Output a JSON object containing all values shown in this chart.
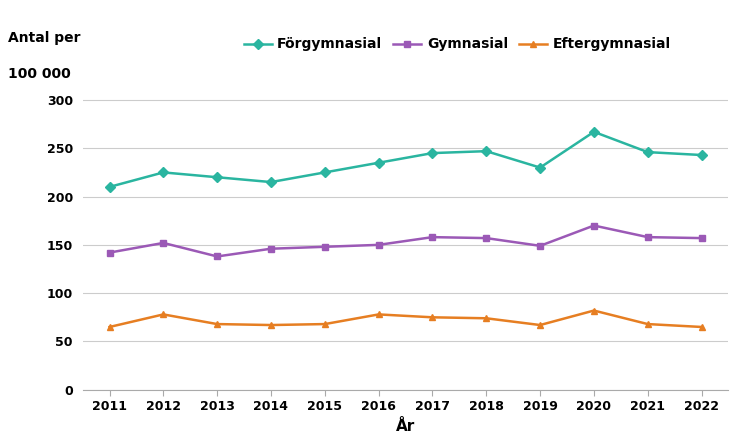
{
  "years": [
    2011,
    2012,
    2013,
    2014,
    2015,
    2016,
    2017,
    2018,
    2019,
    2020,
    2021,
    2022
  ],
  "forgymnasial": [
    210,
    225,
    220,
    215,
    225,
    235,
    245,
    247,
    230,
    267,
    246,
    243
  ],
  "gymnasial": [
    142,
    152,
    138,
    146,
    148,
    150,
    158,
    157,
    149,
    170,
    158,
    157
  ],
  "eftergymnasial": [
    65,
    78,
    68,
    67,
    68,
    78,
    75,
    74,
    67,
    82,
    68,
    65
  ],
  "forgymnasial_color": "#2ab5a0",
  "gymnasial_color": "#9b59b6",
  "eftergymnasial_color": "#e67e22",
  "xlabel": "År",
  "ylabel_line1": "Antal per",
  "ylabel_line2": "100 000",
  "ylim": [
    0,
    320
  ],
  "yticks": [
    0,
    50,
    100,
    150,
    200,
    250,
    300
  ],
  "legend_labels": [
    "Förgymnasial",
    "Gymnasial",
    "Eftergymnasial"
  ],
  "background_color": "#ffffff",
  "grid_color": "#cccccc"
}
